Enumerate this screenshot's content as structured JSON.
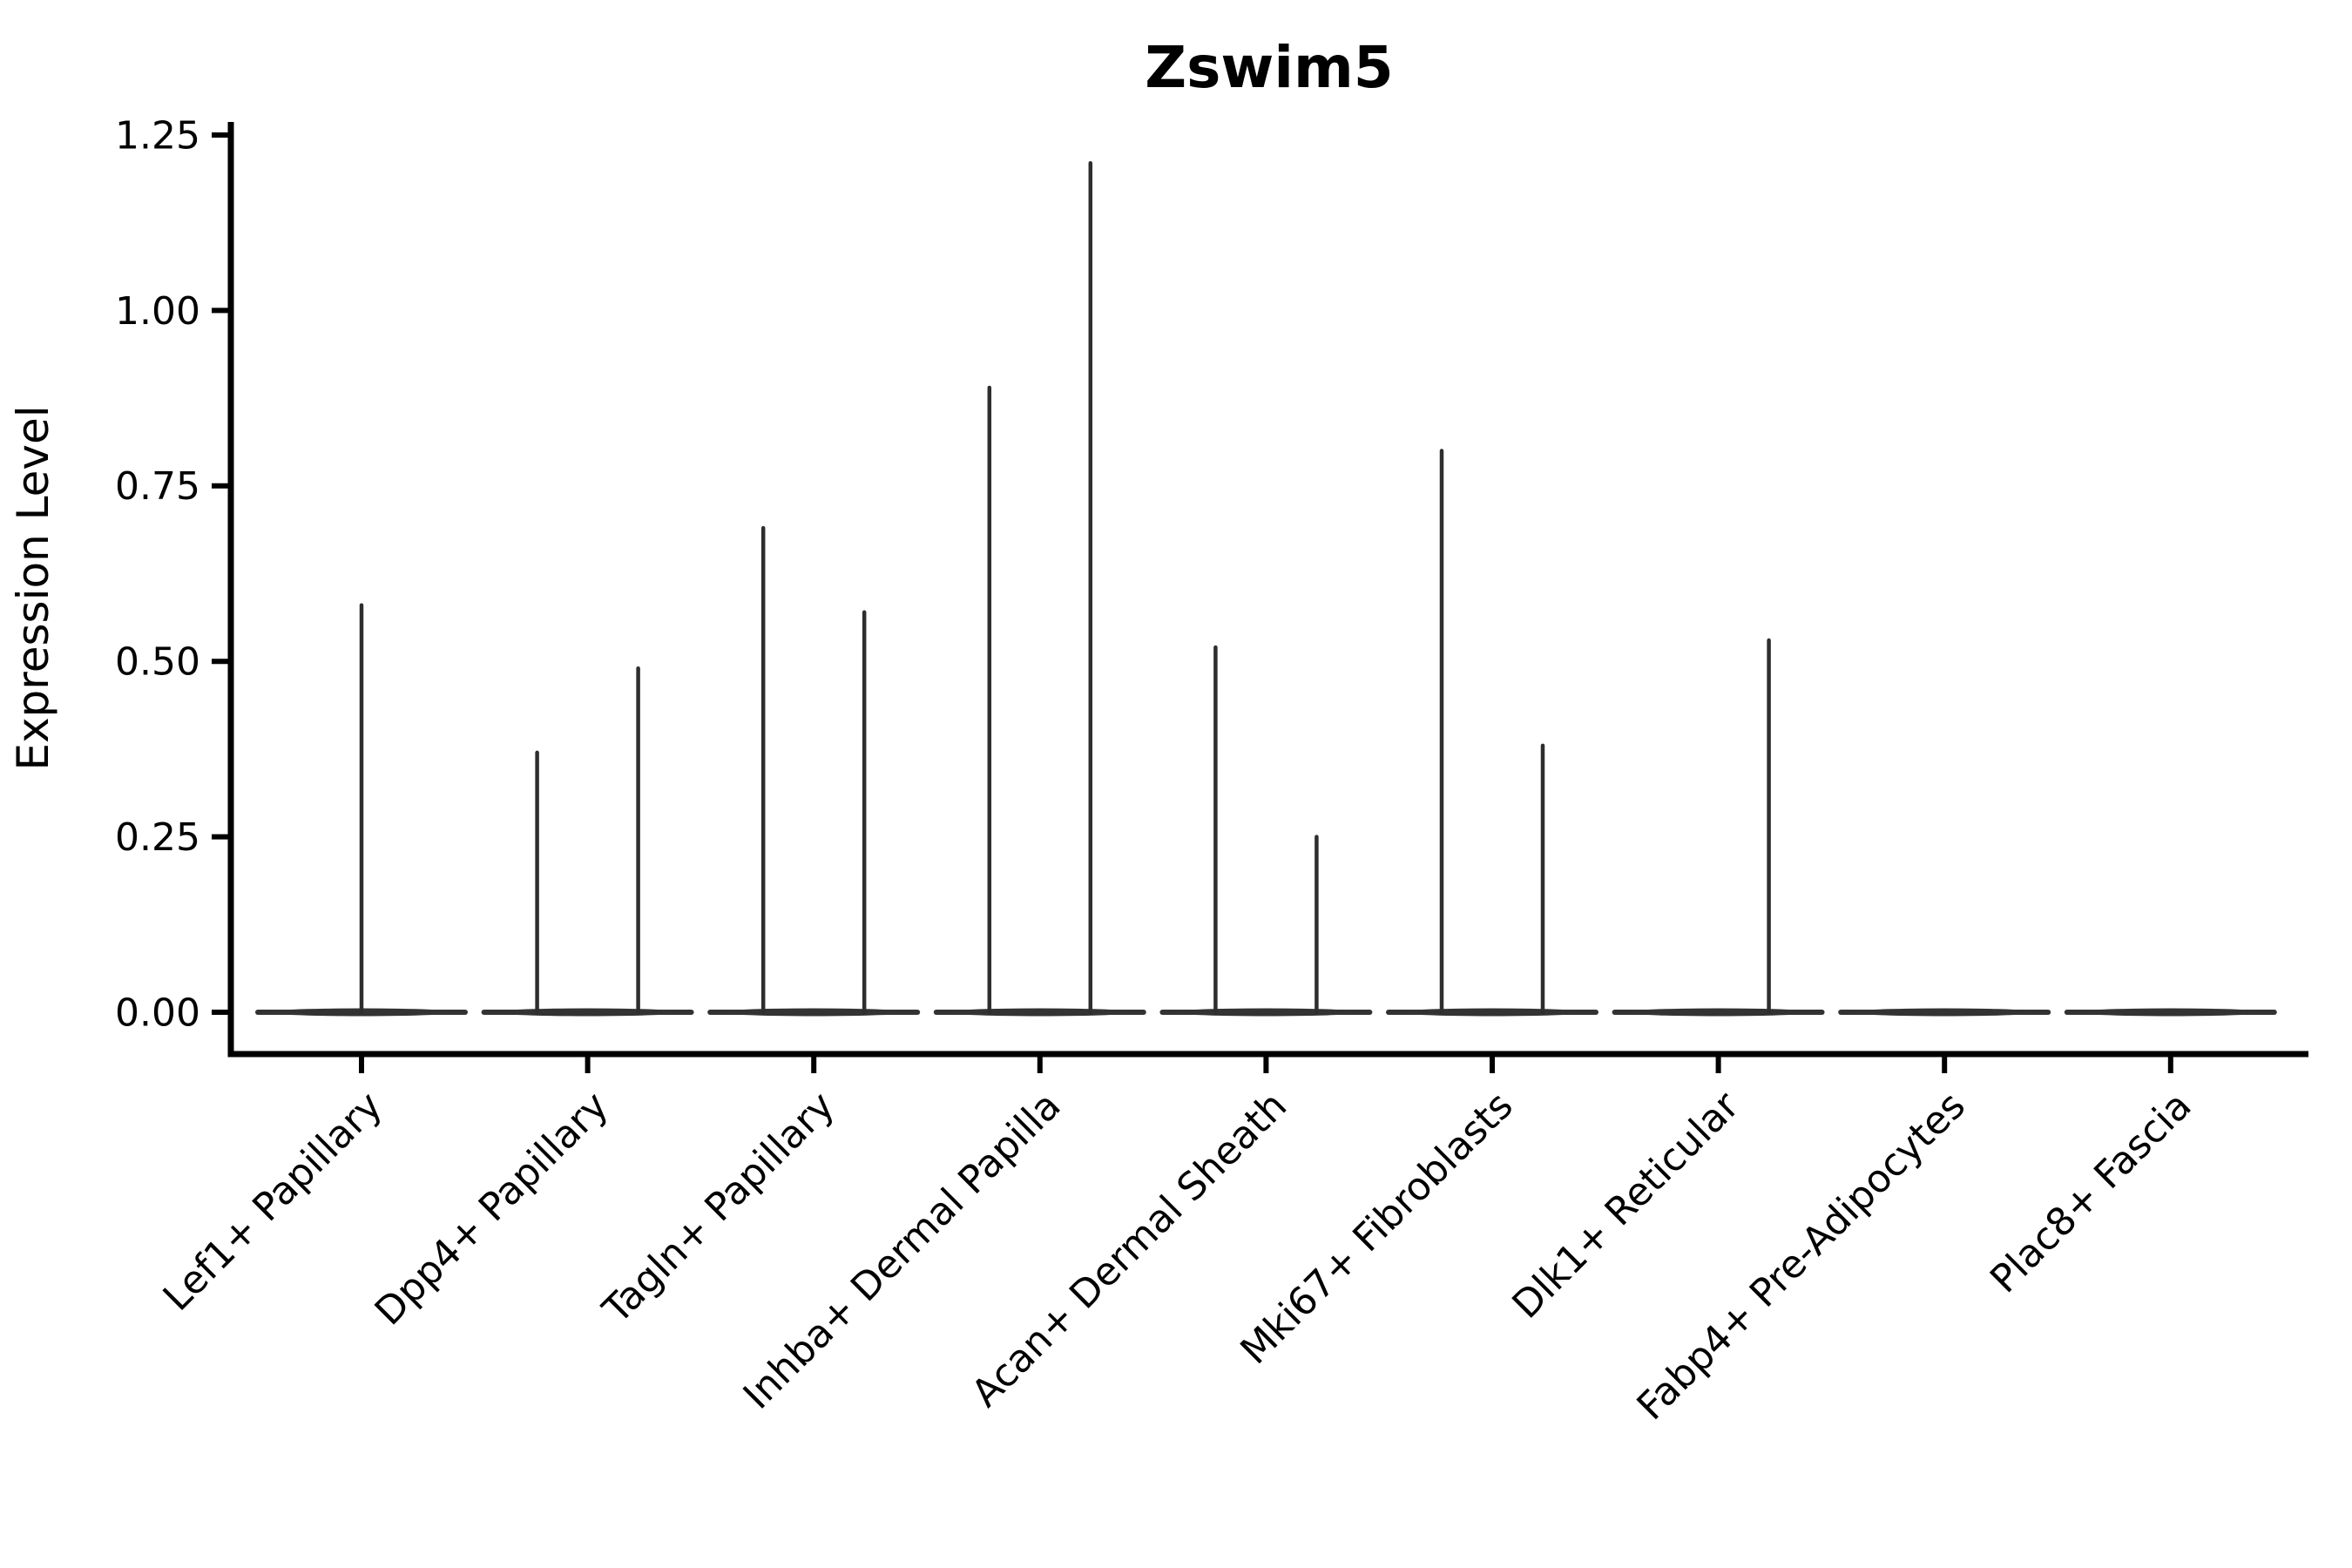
{
  "title": "Zswim5",
  "y_axis": {
    "label": "Expression Level",
    "tick_labels": [
      "0.00",
      "0.25",
      "0.50",
      "0.75",
      "1.00",
      "1.25"
    ]
  },
  "x_axis": {
    "tick_labels": [
      "Lef1+ Papillary",
      "Dpp4+ Papillary",
      "Tagln+ Papillary",
      "Inhba+ Dermal Papilla",
      "Acan+ Dermal Sheath",
      "Mki67+ Fibroblasts",
      "Dlk1+ Reticular",
      "Fabp4+ Pre-Adipocytes",
      "Plac8+ Fascia"
    ]
  },
  "chart_data": {
    "type": "violin",
    "title": "Zswim5",
    "xlabel": "",
    "ylabel": "Expression Level",
    "ylim": [
      0,
      1.25
    ],
    "yticks": [
      0,
      0.25,
      0.5,
      0.75,
      1,
      1.25
    ],
    "grid": false,
    "legend": "none",
    "categories": [
      "Lef1+ Papillary",
      "Dpp4+ Papillary",
      "Tagln+ Papillary",
      "Inhba+ Dermal Papilla",
      "Acan+ Dermal Sheath",
      "Mki67+ Fibroblasts",
      "Dlk1+ Reticular",
      "Fabp4+ Pre-Adipocytes",
      "Plac8+ Fascia"
    ],
    "violins": [
      {
        "category": "Lef1+ Papillary",
        "spikes": [
          {
            "side": "center",
            "max": 0.58
          }
        ]
      },
      {
        "category": "Dpp4+ Papillary",
        "spikes": [
          {
            "side": "left",
            "max": 0.37
          },
          {
            "side": "right",
            "max": 0.49
          }
        ]
      },
      {
        "category": "Tagln+ Papillary",
        "spikes": [
          {
            "side": "left",
            "max": 0.69
          },
          {
            "side": "right",
            "max": 0.57
          }
        ]
      },
      {
        "category": "Inhba+ Dermal Papilla",
        "spikes": [
          {
            "side": "left",
            "max": 0.89
          },
          {
            "side": "right",
            "max": 1.21
          }
        ]
      },
      {
        "category": "Acan+ Dermal Sheath",
        "spikes": [
          {
            "side": "left",
            "max": 0.52
          },
          {
            "side": "right",
            "max": 0.25
          }
        ]
      },
      {
        "category": "Mki67+ Fibroblasts",
        "spikes": [
          {
            "side": "left",
            "max": 0.8
          },
          {
            "side": "right",
            "max": 0.38
          }
        ]
      },
      {
        "category": "Dlk1+ Reticular",
        "spikes": [
          {
            "side": "right",
            "max": 0.53
          }
        ]
      },
      {
        "category": "Fabp4+ Pre-Adipocytes",
        "spikes": []
      },
      {
        "category": "Plac8+ Fascia",
        "spikes": []
      }
    ],
    "colors": {
      "violin_line": "#2e2e2e",
      "baseline": "#333333",
      "axis": "#000000",
      "text": "#000000",
      "background": "#ffffff"
    }
  }
}
